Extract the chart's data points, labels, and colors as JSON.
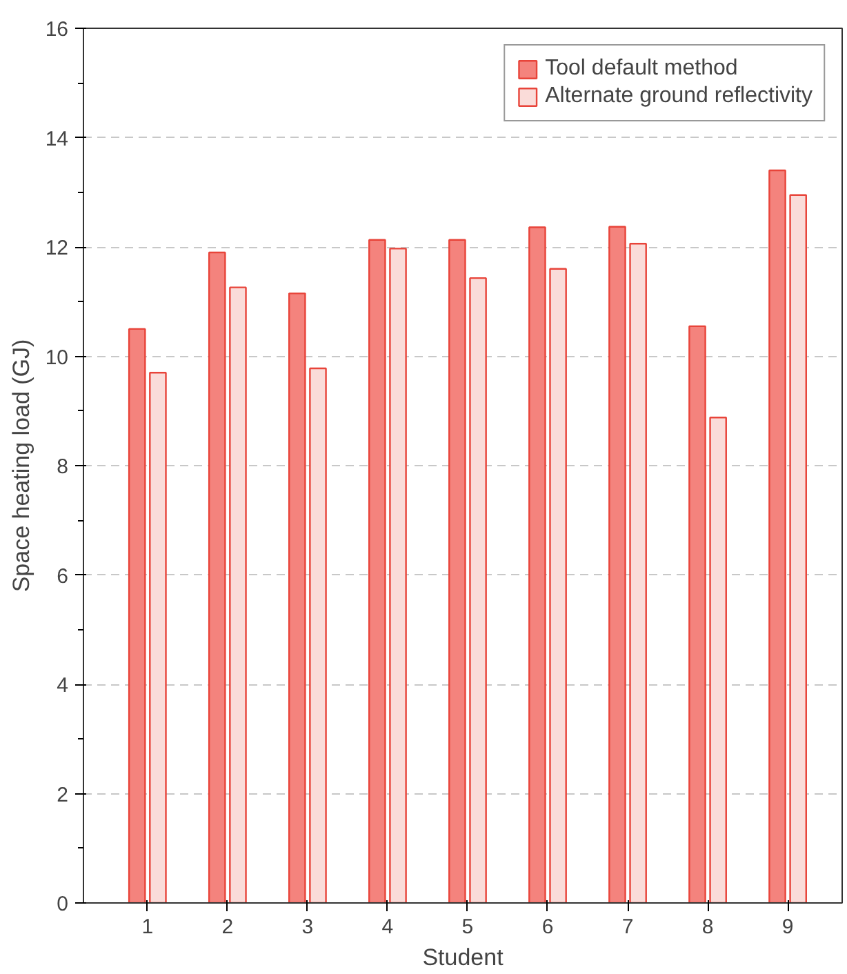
{
  "chart_data": {
    "type": "bar",
    "xlabel": "Student",
    "ylabel": "Space heating load (GJ)",
    "categories": [
      "1",
      "2",
      "3",
      "4",
      "5",
      "6",
      "7",
      "8",
      "9"
    ],
    "series": [
      {
        "name": "Tool default method",
        "color": "#f4837d",
        "values": [
          10.5,
          11.9,
          11.15,
          12.13,
          12.13,
          12.36,
          12.37,
          10.55,
          13.4
        ]
      },
      {
        "name": "Alternate ground reflectivity",
        "color": "#fadcd9",
        "values": [
          9.7,
          11.26,
          9.78,
          11.97,
          11.43,
          11.6,
          12.06,
          8.88,
          12.95
        ]
      }
    ],
    "ylim": [
      0,
      16
    ],
    "yticks": [
      0,
      2,
      4,
      6,
      8,
      10,
      12,
      14,
      16
    ],
    "grid": "y",
    "legend": "top right"
  }
}
